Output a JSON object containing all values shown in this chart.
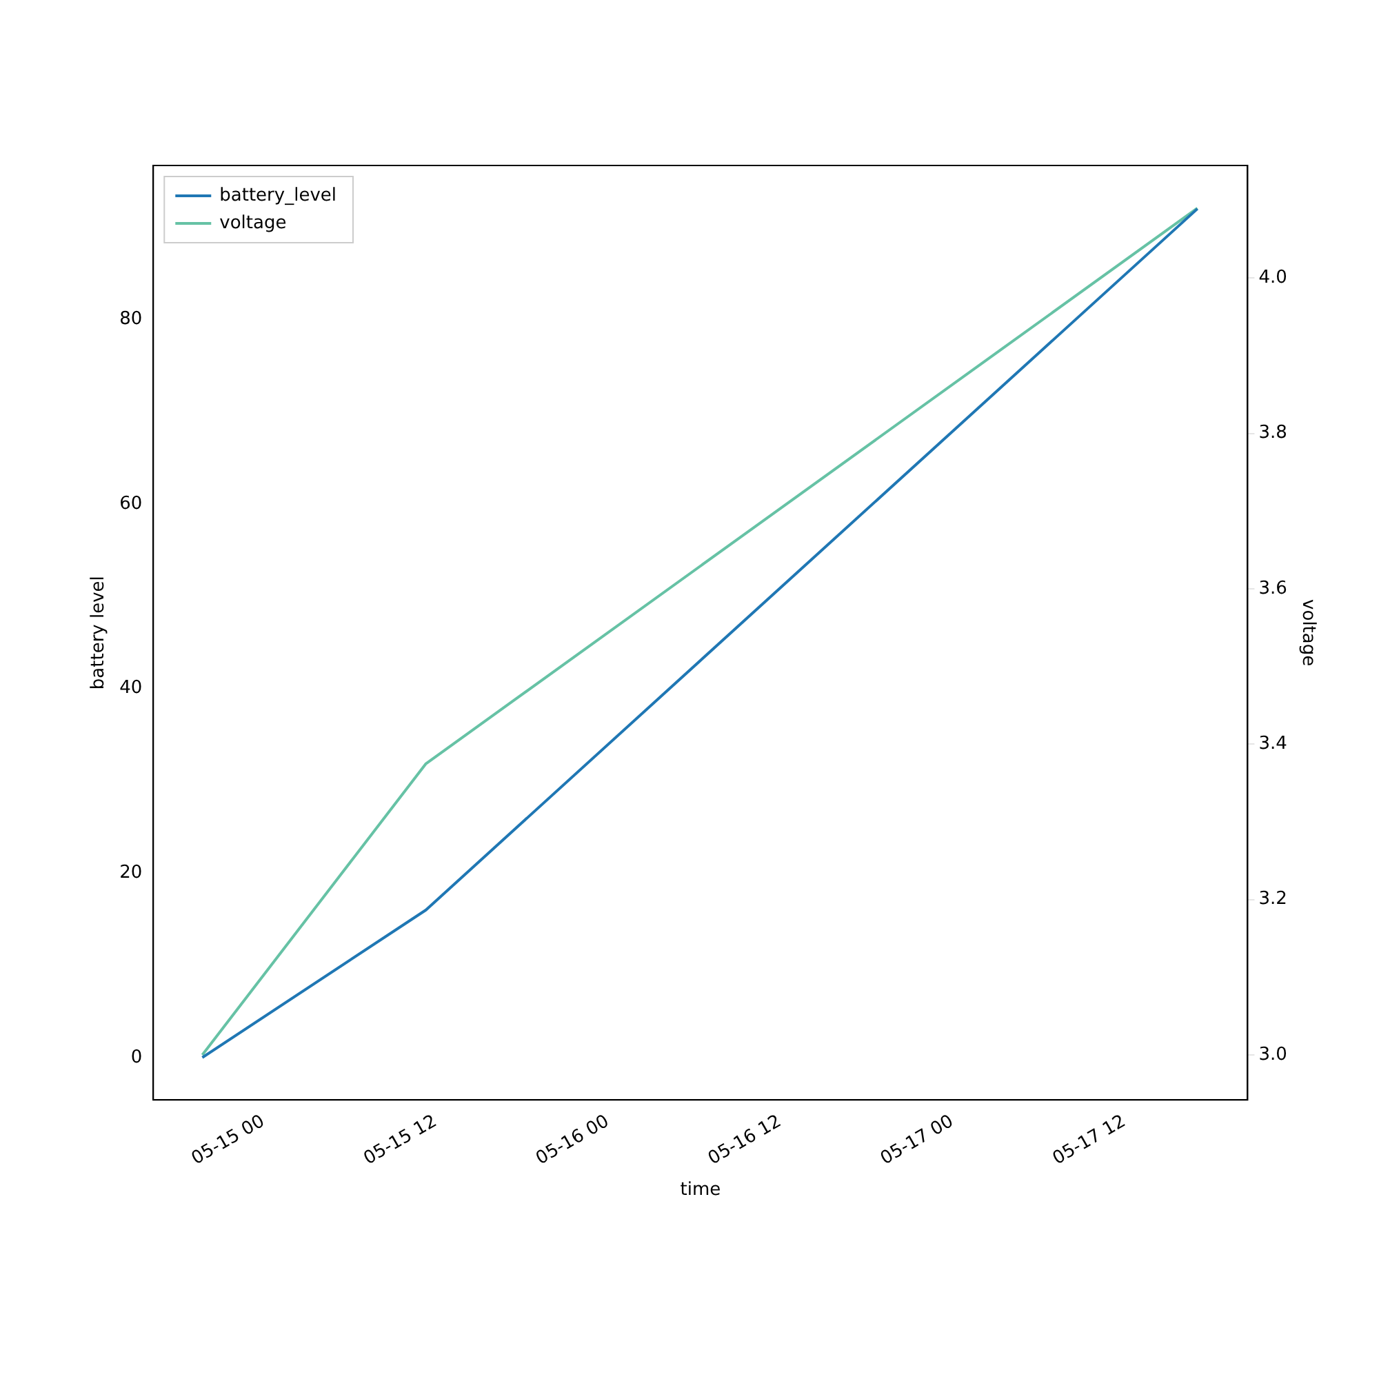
{
  "chart_data": {
    "type": "line",
    "xlabel": "time",
    "ylabel": "battery level",
    "y2label": "voltage",
    "x": [
      "--05-14T19:45",
      "--05-15T11:20",
      "--05-17T17:05"
    ],
    "series": [
      {
        "name": "battery_level",
        "color": "#1f77b4",
        "values": [
          0,
          16,
          92
        ]
      },
      {
        "name": "voltage",
        "color": "#66c2a5",
        "values": [
          3.0,
          3.375,
          4.09
        ],
        "axis": "y2"
      }
    ],
    "xlim": [
      "--05-14T16:20",
      "--05-17T20:35"
    ],
    "xticks": [
      {
        "value": "--05-15T00:00",
        "label": "05-15 00"
      },
      {
        "value": "--05-15T12:00",
        "label": "05-15 12"
      },
      {
        "value": "--05-16T00:00",
        "label": "05-16 00"
      },
      {
        "value": "--05-16T12:00",
        "label": "05-16 12"
      },
      {
        "value": "--05-17T00:00",
        "label": "05-17 00"
      },
      {
        "value": "--05-17T12:00",
        "label": "05-17 12"
      }
    ],
    "ylim": [
      -4.6,
      96.7
    ],
    "yticks": [
      0,
      20,
      40,
      60,
      80
    ],
    "y2lim": [
      2.942,
      4.145
    ],
    "y2ticks": [
      {
        "value": 3.0,
        "label": "3.0"
      },
      3.2,
      3.4,
      3.6,
      3.8,
      {
        "value": 4.0,
        "label": "4.0"
      }
    ],
    "legend": "top left",
    "grid": false,
    "marker": "none",
    "line_style": "solid"
  }
}
